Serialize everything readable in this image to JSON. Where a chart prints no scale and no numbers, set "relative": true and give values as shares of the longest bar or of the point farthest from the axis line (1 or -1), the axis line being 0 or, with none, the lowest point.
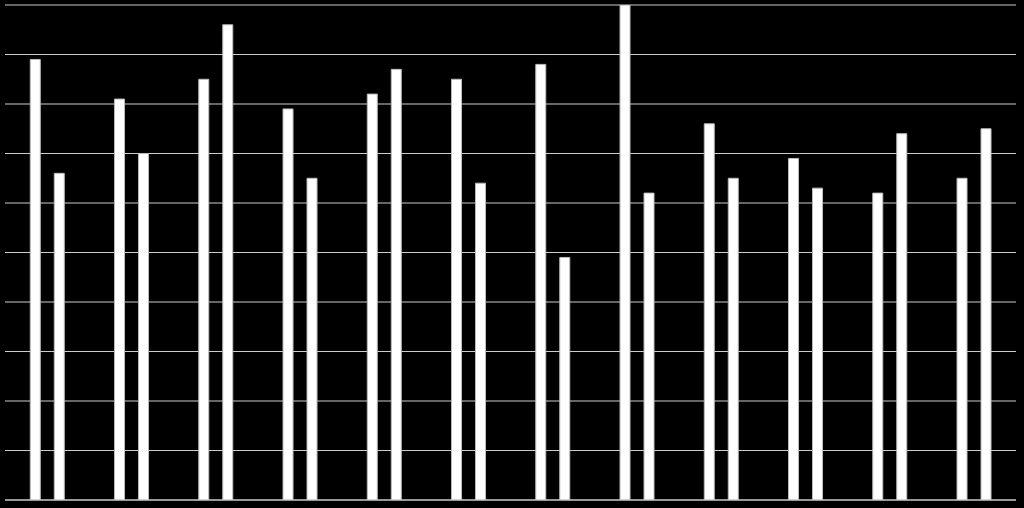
{
  "chart_data": {
    "type": "bar",
    "relative": true,
    "grid": "y",
    "categories": [
      null,
      null,
      null,
      null,
      null,
      null,
      null,
      null,
      null,
      null,
      null,
      null
    ],
    "series": [
      {
        "color": "#ffffff",
        "values": [
          0.89,
          0.81,
          0.85,
          0.79,
          0.82,
          0.85,
          0.88,
          1,
          0.76,
          0.69,
          0.62,
          0.65
        ]
      },
      {
        "color": "#ffffff",
        "values": [
          0.66,
          0.7,
          0.96,
          0.65,
          0.87,
          0.64,
          0.49,
          0.62,
          0.65,
          0.63,
          0.74,
          0.75
        ]
      }
    ]
  }
}
